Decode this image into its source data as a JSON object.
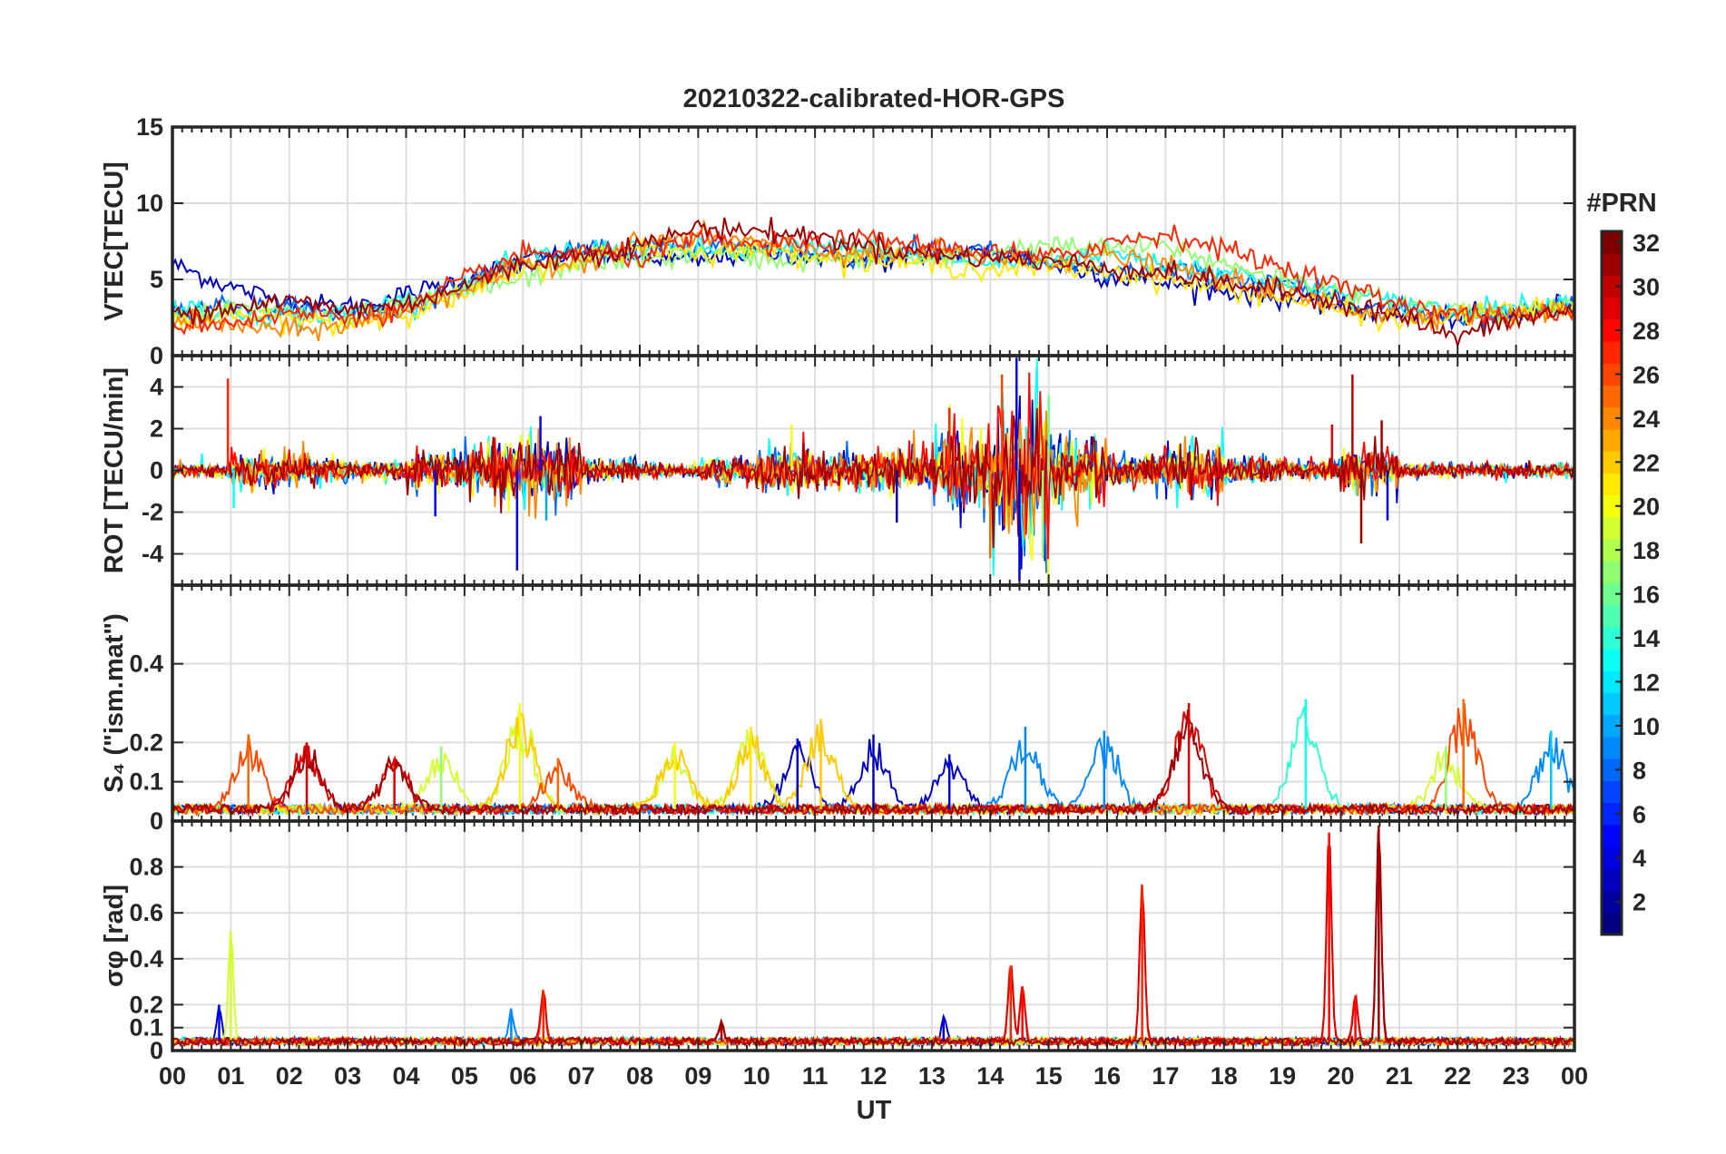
{
  "chart_data": [
    {
      "type": "line",
      "panel": "vtec",
      "title": "20210322-calibrated-HOR-GPS",
      "ylabel": "VTEC[TECU]",
      "xlabel": "",
      "xlim": [
        0,
        24
      ],
      "ylim": [
        0,
        15
      ],
      "yticks": [
        0,
        5,
        10,
        15
      ],
      "ytick_labels": [
        "0",
        "5",
        "10",
        "15"
      ],
      "grid": true,
      "series": [
        {
          "prn": 3,
          "x": [
            0,
            1,
            2,
            3,
            4,
            5,
            6,
            7,
            8,
            9,
            10,
            11,
            12,
            13,
            14,
            15,
            16,
            17,
            18,
            19,
            20,
            21,
            22,
            23,
            24
          ],
          "y": [
            6.0,
            4.5,
            3.5,
            3.2,
            4.0,
            5.0,
            6.2,
            6.8,
            6.5,
            6.2,
            6.8,
            6.5,
            6.2,
            6.5,
            6.8,
            6.0,
            5.2,
            4.8,
            4.2,
            3.8,
            3.2,
            2.6,
            2.5,
            2.8,
            3.5
          ]
        },
        {
          "prn": 8,
          "x": [
            0,
            1,
            2,
            3,
            4,
            5,
            6,
            7,
            8,
            9,
            10,
            11,
            12,
            13,
            14,
            15,
            16,
            17,
            18,
            19,
            20,
            21,
            22,
            23,
            24
          ],
          "y": [
            3.0,
            3.4,
            3.0,
            2.6,
            3.2,
            4.8,
            6.0,
            6.8,
            7.0,
            7.2,
            7.0,
            6.6,
            6.4,
            7.0,
            6.8,
            6.0,
            5.4,
            5.6,
            5.2,
            4.6,
            3.8,
            3.0,
            2.6,
            2.8,
            3.6
          ]
        },
        {
          "prn": 13,
          "x": [
            0,
            1,
            2,
            3,
            4,
            5,
            6,
            7,
            8,
            9,
            10,
            11,
            12,
            13,
            14,
            15,
            16,
            17,
            18,
            19,
            20,
            21,
            22,
            23,
            24
          ],
          "y": [
            3.2,
            2.8,
            2.6,
            2.8,
            3.6,
            4.4,
            6.4,
            7.0,
            7.0,
            7.0,
            6.8,
            7.2,
            7.0,
            6.4,
            6.0,
            6.2,
            6.8,
            6.0,
            5.6,
            4.6,
            4.2,
            3.4,
            3.0,
            3.2,
            3.6
          ]
        },
        {
          "prn": 17,
          "x": [
            0,
            1,
            2,
            3,
            4,
            5,
            6,
            7,
            8,
            9,
            10,
            11,
            12,
            13,
            14,
            15,
            16,
            17,
            18,
            19,
            20,
            21,
            22,
            23,
            24
          ],
          "y": [
            2.6,
            3.0,
            2.8,
            2.4,
            3.2,
            4.2,
            5.0,
            6.2,
            6.2,
            6.6,
            6.4,
            6.2,
            6.6,
            6.2,
            6.8,
            7.2,
            7.0,
            7.2,
            6.0,
            5.2,
            4.2,
            3.4,
            3.0,
            2.8,
            3.4
          ]
        },
        {
          "prn": 21,
          "x": [
            0,
            1,
            2,
            3,
            4,
            5,
            6,
            7,
            8,
            9,
            10,
            11,
            12,
            13,
            14,
            15,
            16,
            17,
            18,
            19,
            20,
            21,
            22,
            23,
            24
          ],
          "y": [
            2.4,
            2.6,
            2.4,
            2.0,
            2.8,
            4.0,
            5.6,
            6.4,
            7.2,
            6.8,
            7.0,
            6.6,
            6.2,
            6.0,
            5.6,
            5.8,
            5.6,
            5.0,
            4.4,
            3.8,
            3.0,
            2.2,
            2.6,
            3.0,
            3.2
          ]
        },
        {
          "prn": 24,
          "x": [
            0,
            1,
            2,
            3,
            4,
            5,
            6,
            7,
            8,
            9,
            10,
            11,
            12,
            13,
            14,
            15,
            16,
            17,
            18,
            19,
            20,
            21,
            22,
            23,
            24
          ],
          "y": [
            2.2,
            2.0,
            1.6,
            2.0,
            3.0,
            4.4,
            5.8,
            6.2,
            7.4,
            7.8,
            7.4,
            6.8,
            6.6,
            6.8,
            6.4,
            6.2,
            6.6,
            5.8,
            5.0,
            4.2,
            3.2,
            2.6,
            2.8,
            2.6,
            3.0
          ]
        },
        {
          "prn": 27,
          "x": [
            0,
            1,
            2,
            3,
            4,
            5,
            6,
            7,
            8,
            9,
            10,
            11,
            12,
            13,
            14,
            15,
            16,
            17,
            18,
            19,
            20,
            21,
            22,
            23,
            24
          ],
          "y": [
            2.0,
            2.2,
            2.8,
            2.6,
            3.0,
            5.0,
            6.6,
            6.8,
            6.4,
            7.6,
            7.2,
            7.4,
            7.6,
            7.2,
            6.8,
            6.4,
            7.4,
            8.0,
            7.0,
            5.8,
            4.6,
            3.4,
            2.8,
            2.4,
            2.8
          ]
        },
        {
          "prn": 31,
          "x": [
            0,
            1,
            2,
            3,
            4,
            5,
            6,
            7,
            8,
            9,
            10,
            11,
            12,
            13,
            14,
            15,
            16,
            17,
            18,
            19,
            20,
            21,
            22,
            23,
            24
          ],
          "y": [
            2.8,
            3.2,
            3.6,
            3.0,
            3.4,
            4.6,
            6.0,
            6.6,
            7.2,
            8.4,
            8.2,
            7.8,
            7.2,
            6.6,
            6.4,
            6.2,
            5.8,
            5.4,
            4.8,
            4.2,
            3.6,
            2.6,
            1.2,
            2.4,
            3.0
          ]
        }
      ]
    },
    {
      "type": "line",
      "panel": "rot",
      "ylabel": "ROT [TECU/min]",
      "xlim": [
        0,
        24
      ],
      "ylim": [
        -5.5,
        5.5
      ],
      "yticks": [
        -4,
        -2,
        0,
        2,
        4
      ],
      "ytick_labels": [
        "-4",
        "-2",
        "0",
        "2",
        "4"
      ],
      "grid": true,
      "noise_std_by_hour": [
        0.2,
        0.5,
        0.4,
        0.3,
        0.6,
        0.9,
        0.9,
        0.3,
        0.2,
        0.4,
        0.7,
        0.6,
        0.6,
        1.2,
        2.4,
        1.0,
        0.5,
        0.8,
        0.4,
        0.3,
        0.7,
        0.2,
        0.2,
        0.2,
        0.2
      ],
      "spikes": [
        {
          "x": 0.95,
          "y": 4.4
        },
        {
          "x": 1.05,
          "y": -1.8
        },
        {
          "x": 4.5,
          "y": -2.2
        },
        {
          "x": 5.9,
          "y": -4.8
        },
        {
          "x": 6.3,
          "y": 2.6
        },
        {
          "x": 6.4,
          "y": -2.4
        },
        {
          "x": 10.6,
          "y": 2.2
        },
        {
          "x": 12.4,
          "y": -2.5
        },
        {
          "x": 13.3,
          "y": 3.0
        },
        {
          "x": 14.0,
          "y": -4.2
        },
        {
          "x": 14.2,
          "y": 4.6
        },
        {
          "x": 14.45,
          "y": 5.4
        },
        {
          "x": 14.5,
          "y": -5.3
        },
        {
          "x": 14.9,
          "y": -4.2
        },
        {
          "x": 15.0,
          "y": 3.6
        },
        {
          "x": 19.85,
          "y": 2.2
        },
        {
          "x": 20.2,
          "y": 4.6
        },
        {
          "x": 20.35,
          "y": -3.5
        },
        {
          "x": 20.7,
          "y": 2.4
        },
        {
          "x": 20.8,
          "y": -2.4
        }
      ]
    },
    {
      "type": "line",
      "panel": "s4",
      "ylabel": "S₄ (\"ism.mat\")",
      "xlim": [
        0,
        24
      ],
      "ylim": [
        0,
        0.6
      ],
      "yticks": [
        0,
        0.1,
        0.2,
        0.4
      ],
      "ytick_labels": [
        "0",
        "0.1",
        "0.2",
        "0.4"
      ],
      "grid": true,
      "baseline": 0.03,
      "peaks": [
        {
          "x": 1.3,
          "y": 0.22,
          "prn": 25
        },
        {
          "x": 2.3,
          "y": 0.2,
          "prn": 29
        },
        {
          "x": 3.8,
          "y": 0.16,
          "prn": 29
        },
        {
          "x": 4.6,
          "y": 0.19,
          "prn": 17
        },
        {
          "x": 5.95,
          "y": 0.3,
          "prn": 20
        },
        {
          "x": 6.6,
          "y": 0.16,
          "prn": 25
        },
        {
          "x": 8.6,
          "y": 0.2,
          "prn": 20
        },
        {
          "x": 9.9,
          "y": 0.24,
          "prn": 21
        },
        {
          "x": 10.7,
          "y": 0.21,
          "prn": 3
        },
        {
          "x": 11.1,
          "y": 0.26,
          "prn": 22
        },
        {
          "x": 12.0,
          "y": 0.22,
          "prn": 3
        },
        {
          "x": 13.3,
          "y": 0.17,
          "prn": 4
        },
        {
          "x": 14.6,
          "y": 0.24,
          "prn": 9
        },
        {
          "x": 15.95,
          "y": 0.23,
          "prn": 9
        },
        {
          "x": 17.4,
          "y": 0.3,
          "prn": 29
        },
        {
          "x": 19.4,
          "y": 0.31,
          "prn": 13
        },
        {
          "x": 21.8,
          "y": 0.19,
          "prn": 17
        },
        {
          "x": 22.1,
          "y": 0.31,
          "prn": 25
        },
        {
          "x": 23.6,
          "y": 0.23,
          "prn": 11
        }
      ]
    },
    {
      "type": "line",
      "panel": "sigma_phi",
      "ylabel": "σφ [rad]",
      "xlabel": "UT",
      "xlim": [
        0,
        24
      ],
      "ylim": [
        0,
        1
      ],
      "yticks": [
        0,
        0.1,
        0.2,
        0.4,
        0.6,
        0.8
      ],
      "ytick_labels": [
        "0",
        "0.1",
        "0.2",
        "0.4",
        "0.6",
        "0.8"
      ],
      "xticks": [
        0,
        1,
        2,
        3,
        4,
        5,
        6,
        7,
        8,
        9,
        10,
        11,
        12,
        13,
        14,
        15,
        16,
        17,
        18,
        19,
        20,
        21,
        22,
        23,
        24
      ],
      "xtick_labels": [
        "00",
        "01",
        "02",
        "03",
        "04",
        "05",
        "06",
        "07",
        "08",
        "09",
        "10",
        "11",
        "12",
        "13",
        "14",
        "15",
        "16",
        "17",
        "18",
        "19",
        "20",
        "21",
        "22",
        "23",
        "00"
      ],
      "grid": true,
      "baseline": 0.04,
      "peaks": [
        {
          "x": 0.8,
          "y": 0.2,
          "prn": 5
        },
        {
          "x": 1.0,
          "y": 0.52,
          "prn": 19
        },
        {
          "x": 5.8,
          "y": 0.18,
          "prn": 9
        },
        {
          "x": 6.35,
          "y": 0.26,
          "prn": 27
        },
        {
          "x": 9.4,
          "y": 0.12,
          "prn": 31
        },
        {
          "x": 13.2,
          "y": 0.15,
          "prn": 4
        },
        {
          "x": 14.35,
          "y": 0.37,
          "prn": 27
        },
        {
          "x": 14.55,
          "y": 0.28,
          "prn": 28
        },
        {
          "x": 16.6,
          "y": 0.72,
          "prn": 27
        },
        {
          "x": 19.8,
          "y": 0.95,
          "prn": 28
        },
        {
          "x": 20.25,
          "y": 0.24,
          "prn": 28
        },
        {
          "x": 20.65,
          "y": 0.98,
          "prn": 31
        }
      ]
    }
  ],
  "colorbar": {
    "title": "#PRN",
    "min": 1,
    "max": 32,
    "tick_labels": [
      "2",
      "4",
      "6",
      "8",
      "10",
      "12",
      "14",
      "16",
      "18",
      "20",
      "22",
      "24",
      "26",
      "28",
      "30",
      "32"
    ],
    "colormap": "jet"
  }
}
